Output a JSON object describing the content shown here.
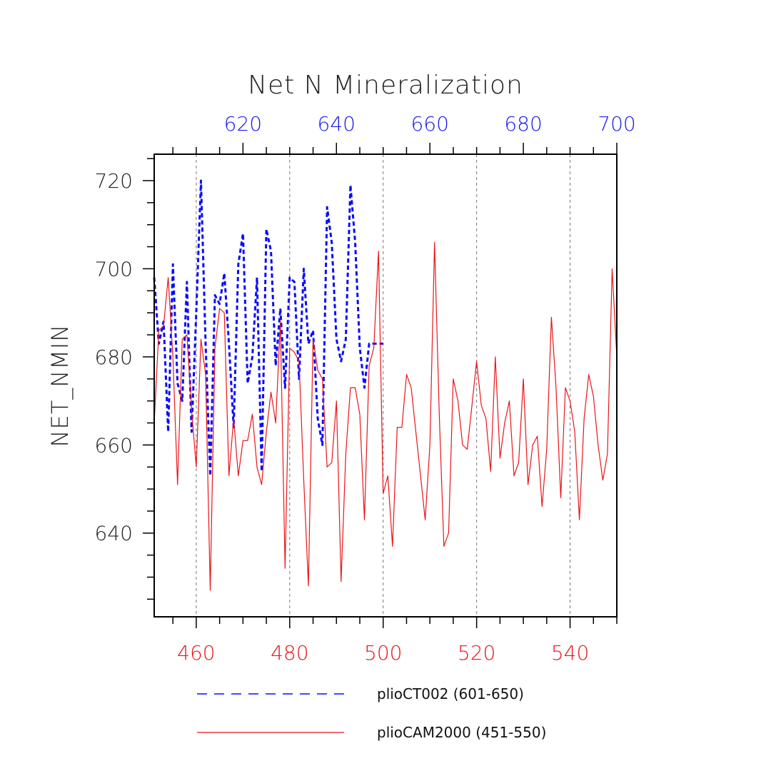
{
  "chart_data": {
    "type": "line",
    "title": "Net N Mineralization",
    "ylabel": "NET_NMIN",
    "ylim": [
      621,
      726
    ],
    "y_ticks": [
      640,
      660,
      680,
      700,
      720
    ],
    "bottom_axis": {
      "range": [
        451,
        550
      ],
      "ticks": [
        460,
        480,
        500,
        520,
        540
      ],
      "color": "#e8161a"
    },
    "top_axis": {
      "range": [
        601,
        700
      ],
      "ticks": [
        620,
        640,
        660,
        680,
        700
      ],
      "color": "#1b1bf0"
    },
    "grid_x": [
      460,
      480,
      500,
      520,
      540
    ],
    "series": [
      {
        "name": "plioCT002 (601-650)",
        "axis": "top",
        "color": "#0a0aff",
        "style": "dashed",
        "x": [
          601,
          602,
          603,
          604,
          605,
          606,
          607,
          608,
          609,
          610,
          611,
          612,
          613,
          614,
          615,
          616,
          617,
          618,
          619,
          620,
          621,
          622,
          623,
          624,
          625,
          626,
          627,
          628,
          629,
          630,
          631,
          632,
          633,
          634,
          635,
          636,
          637,
          638,
          639,
          640,
          641,
          642,
          643,
          644,
          645,
          646,
          647,
          648,
          649,
          650
        ],
        "values": [
          698,
          683,
          688,
          663,
          701,
          674,
          670,
          697,
          663,
          690,
          720,
          683,
          653,
          694,
          692,
          699,
          683,
          664,
          701,
          708,
          674,
          680,
          698,
          654,
          709,
          704,
          678,
          691,
          673,
          698,
          697,
          675,
          700,
          683,
          686,
          666,
          660,
          714,
          706,
          684,
          679,
          684,
          719,
          706,
          682,
          673,
          683,
          683,
          683,
          683
        ]
      },
      {
        "name": "plioCAM2000 (451-550)",
        "axis": "bottom",
        "color": "#e8161a",
        "style": "solid",
        "x": [
          451,
          452,
          453,
          454,
          455,
          456,
          457,
          458,
          459,
          460,
          461,
          462,
          463,
          464,
          465,
          466,
          467,
          468,
          469,
          470,
          471,
          472,
          473,
          474,
          475,
          476,
          477,
          478,
          479,
          480,
          481,
          482,
          483,
          484,
          485,
          486,
          487,
          488,
          489,
          490,
          491,
          492,
          493,
          494,
          495,
          496,
          497,
          498,
          499,
          500,
          501,
          502,
          503,
          504,
          505,
          506,
          507,
          508,
          509,
          510,
          511,
          512,
          513,
          514,
          515,
          516,
          517,
          518,
          519,
          520,
          521,
          522,
          523,
          524,
          525,
          526,
          527,
          528,
          529,
          530,
          531,
          532,
          533,
          534,
          535,
          536,
          537,
          538,
          539,
          540,
          541,
          542,
          543,
          544,
          545,
          546,
          547,
          548,
          549,
          550
        ],
        "values": [
          665,
          686,
          687,
          698,
          680,
          651,
          684,
          685,
          668,
          655,
          684,
          676,
          627,
          682,
          691,
          690,
          653,
          666,
          653,
          661,
          661,
          667,
          655,
          651,
          663,
          672,
          665,
          688,
          632,
          682,
          681,
          679,
          652,
          628,
          684,
          677,
          675,
          655,
          656,
          670,
          629,
          658,
          673,
          673,
          667,
          643,
          678,
          682,
          704,
          649,
          653,
          637,
          664,
          664,
          676,
          673,
          663,
          653,
          643,
          660,
          706,
          667,
          637,
          640,
          675,
          670,
          660,
          659,
          669,
          679,
          669,
          666,
          654,
          680,
          657,
          665,
          670,
          653,
          656,
          675,
          651,
          660,
          662,
          646,
          659,
          689,
          673,
          648,
          673,
          670,
          663,
          643,
          666,
          676,
          671,
          660,
          652,
          658,
          700,
          680
        ]
      }
    ],
    "legend": [
      {
        "label": "plioCT002 (601-650)",
        "color": "#0a0aff",
        "style": "dashed"
      },
      {
        "label": "plioCAM2000 (451-550)",
        "color": "#e8161a",
        "style": "solid"
      }
    ]
  }
}
